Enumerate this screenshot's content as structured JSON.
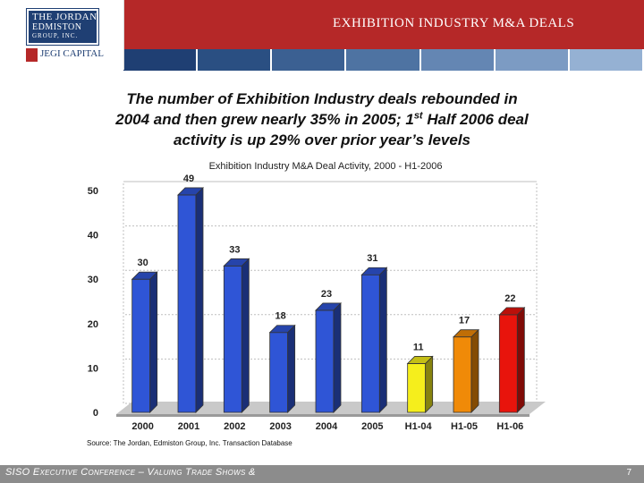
{
  "header": {
    "logo_line1": "THE JORDAN",
    "logo_line2": "EDMISTON",
    "logo_line3": "GROUP, INC.",
    "sub_logo": "JEGI CAPITAL",
    "slide_title": "EXHIBITION INDUSTRY M&A DEALS",
    "stripe_colors": [
      "#1f3f73",
      "#2a4f82",
      "#3b6092",
      "#4e73a2",
      "#6486b3",
      "#7c9bc3",
      "#95b1d3"
    ]
  },
  "headline": {
    "line1": "The number of Exhibition Industry deals rebounded in",
    "line2_before_sup": "2004 and then grew nearly 35% in 2005; 1",
    "line2_sup": "st",
    "line2_after_sup": " Half 2006 deal",
    "line3": "activity is up 29% over prior year’s levels"
  },
  "chart_data": {
    "type": "bar",
    "title": "Exhibition Industry M&A Deal Activity, 2000 - H1-2006",
    "categories": [
      "2000",
      "2001",
      "2002",
      "2003",
      "2004",
      "2005",
      "H1-04",
      "H1-05",
      "H1-06"
    ],
    "values": [
      30,
      49,
      33,
      18,
      23,
      31,
      11,
      17,
      22
    ],
    "bar_colors": [
      "#2f55d6",
      "#2f55d6",
      "#2f55d6",
      "#2f55d6",
      "#2f55d6",
      "#2f55d6",
      "#f5ee1c",
      "#f08a08",
      "#e8140c"
    ],
    "ylim": [
      0,
      50
    ],
    "yticks": [
      0,
      10,
      20,
      30,
      40,
      50
    ],
    "grid": true,
    "xlabel": "",
    "ylabel": ""
  },
  "source": "Source: The Jordan, Edmiston Group, Inc. Transaction Database",
  "footer": {
    "text": "SISO Executive Conference – Valuing Trade Shows &",
    "page_number": "7"
  }
}
